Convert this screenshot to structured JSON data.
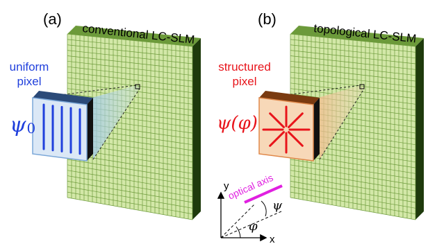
{
  "panel_a": {
    "tag": "(a)",
    "title": "conventional LC-SLM",
    "pixel_label_line1": "uniform",
    "pixel_label_line2": "pixel",
    "symbol_main": "ψ",
    "symbol_sub": "0",
    "label_color": "#1f3fdc",
    "pixel_face_color": "#dbe8f6",
    "pixel_line_color": "#1f3fdc",
    "line_count": 5
  },
  "panel_b": {
    "tag": "(b)",
    "title": "topological LC-SLM",
    "pixel_label_line1": "structured",
    "pixel_label_line2": "pixel",
    "symbol": "ψ(φ)",
    "label_color": "#e8141b",
    "pixel_face_color": "#f7d8b8",
    "pixel_line_color": "#e8141b",
    "spoke_count": 8
  },
  "slm_colors": {
    "face": "#d3e8a8",
    "grid": "#6c9a3a",
    "side": "#1e3a0c"
  },
  "axes_inset": {
    "x_label": "x",
    "y_label": "y",
    "optical_axis_label": "optical axis",
    "optical_axis_color": "#e020e0",
    "psi_label": "ψ",
    "phi_label": "φ"
  }
}
